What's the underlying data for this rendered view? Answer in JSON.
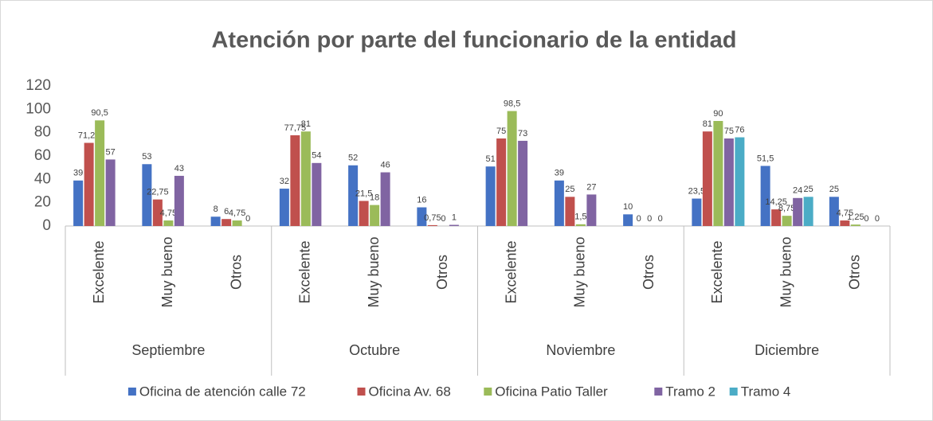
{
  "chart_data": {
    "type": "bar",
    "title": "Atención por parte del funcionario de la entidad",
    "categories": [
      "Excelente",
      "Muy bueno",
      "Otros",
      "Excelente",
      "Muy bueno",
      "Otros",
      "Excelente",
      "Muy bueno",
      "Otros",
      "Excelente",
      "Muy bueno",
      "Otros"
    ],
    "groups": [
      "Septiembre",
      "Octubre",
      "Noviembre",
      "Diciembre"
    ],
    "series": [
      {
        "name": "Oficina de atención calle 72",
        "color": "#4472c4",
        "values": [
          39,
          53,
          8,
          32,
          52,
          16,
          51,
          39,
          10,
          23.5,
          51.5,
          25
        ],
        "value_labels": [
          "39",
          "53",
          "8",
          "32",
          "52",
          "16",
          "51",
          "39",
          "10",
          "23,5",
          "51,5",
          "25"
        ]
      },
      {
        "name": "Oficina Av. 68",
        "color": "#c0504d",
        "values": [
          71.25,
          22.75,
          6,
          77.75,
          21.5,
          0.75,
          75,
          25,
          0,
          81,
          14.25,
          4.75
        ],
        "value_labels": [
          "71,25",
          "22,75",
          "6",
          "77,75",
          "21,5",
          "0,75",
          "75",
          "25",
          "0",
          "81",
          "14,25",
          "4,75"
        ]
      },
      {
        "name": "Oficina Patio Taller",
        "color": "#9bbb59",
        "values": [
          90.5,
          4.75,
          4.75,
          81,
          18,
          0,
          98.5,
          1.5,
          0,
          90,
          8.75,
          1.25
        ],
        "value_labels": [
          "90,5",
          "4,75",
          "4,75",
          "81",
          "18",
          "0",
          "98,5",
          "1,5",
          "0",
          "90",
          "8,75",
          "1,25"
        ]
      },
      {
        "name": "Tramo 2",
        "color": "#8064a2",
        "values": [
          57,
          43,
          0,
          54,
          46,
          1,
          73,
          27,
          0,
          75,
          24,
          0
        ],
        "value_labels": [
          "57",
          "43",
          "0",
          "54",
          "46",
          "1",
          "73",
          "27",
          "0",
          "75",
          "24",
          "0"
        ]
      },
      {
        "name": "Tramo 4",
        "color": "#4bacc6",
        "values": [
          null,
          null,
          null,
          null,
          null,
          null,
          null,
          null,
          null,
          76,
          25,
          0
        ],
        "value_labels": [
          null,
          null,
          null,
          null,
          null,
          null,
          null,
          null,
          null,
          "76",
          "25",
          "0"
        ]
      }
    ],
    "ylim": [
      0,
      120
    ],
    "yticks": [
      0,
      20,
      40,
      60,
      80,
      100,
      120
    ],
    "grid": false,
    "legend": "bottom"
  }
}
